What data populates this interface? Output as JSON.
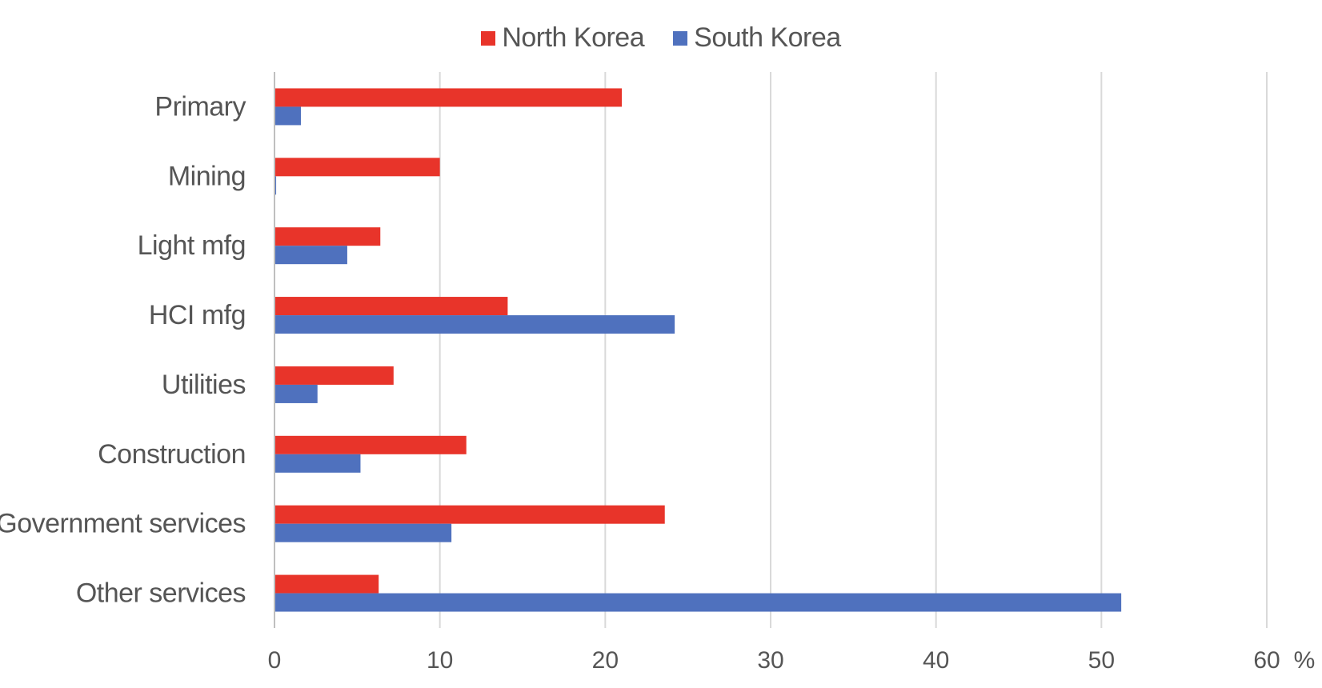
{
  "chart_data": {
    "type": "bar",
    "orientation": "horizontal",
    "categories": [
      "Primary",
      "Mining",
      "Light mfg",
      "HCI mfg",
      "Utilities",
      "Construction",
      "Government services",
      "Other services"
    ],
    "series": [
      {
        "name": "North Korea",
        "color": "#e8342a",
        "values": [
          21.0,
          10.0,
          6.4,
          14.1,
          7.2,
          11.6,
          23.6,
          6.3
        ]
      },
      {
        "name": "South Korea",
        "color": "#4f71be",
        "values": [
          1.6,
          0.1,
          4.4,
          24.2,
          2.6,
          5.2,
          10.7,
          51.2
        ]
      }
    ],
    "xlim": [
      0,
      60
    ],
    "xticks": [
      "0",
      "10",
      "20",
      "30",
      "40",
      "50",
      "60"
    ],
    "unit": "%",
    "grid": true,
    "legend_position": "top"
  }
}
